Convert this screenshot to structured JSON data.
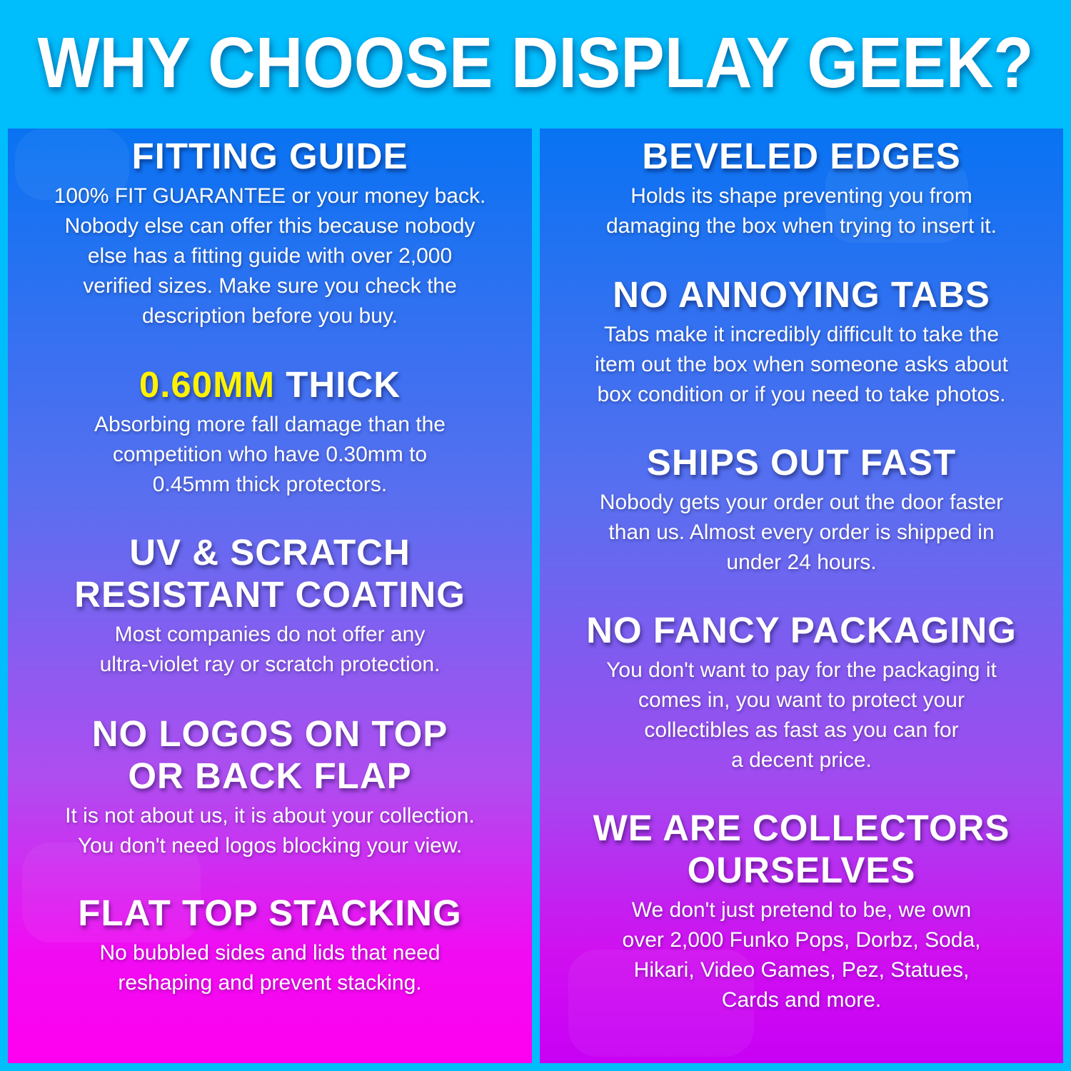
{
  "title": "WHY CHOOSE DISPLAY GEEK?",
  "colors": {
    "background": "#00bdfc",
    "highlight": "#fff200",
    "panel_top": "#0873f2",
    "panel_bottom": "#ff00f0"
  },
  "left": [
    {
      "heading": [
        "FITTING GUIDE"
      ],
      "body": [
        "100% FIT GUARANTEE or your money back.",
        "Nobody else can offer this because nobody",
        "else has a fitting guide with over 2,000",
        "verified sizes. Make sure you check the",
        "description before you buy."
      ]
    },
    {
      "heading_highlight": "0.60MM",
      "heading": [
        "THICK"
      ],
      "body": [
        "Absorbing more fall damage than the",
        "competition who have 0.30mm to",
        "0.45mm thick protectors."
      ]
    },
    {
      "heading": [
        "UV & SCRATCH",
        "RESISTANT COATING"
      ],
      "body": [
        "Most companies do not offer any",
        "ultra-violet ray or scratch protection."
      ]
    },
    {
      "heading": [
        "NO LOGOS ON TOP",
        "OR BACK FLAP"
      ],
      "body": [
        "It is not about us, it is about your collection.",
        "You don't need logos blocking your view."
      ]
    },
    {
      "heading": [
        "FLAT TOP STACKING"
      ],
      "body": [
        "No bubbled sides and lids that need",
        "reshaping and prevent stacking."
      ]
    }
  ],
  "right": [
    {
      "heading": [
        "BEVELED EDGES"
      ],
      "body": [
        "Holds its shape preventing you from",
        "damaging the box when trying to insert it."
      ]
    },
    {
      "heading": [
        "NO ANNOYING TABS"
      ],
      "body": [
        "Tabs make it incredibly difficult to take the",
        "item out the box when someone asks about",
        "box condition or if you need to take photos."
      ]
    },
    {
      "heading": [
        "SHIPS OUT FAST"
      ],
      "body": [
        "Nobody gets your order out the door faster",
        "than us. Almost every order is shipped in",
        "under 24 hours."
      ]
    },
    {
      "heading": [
        "NO FANCY PACKAGING"
      ],
      "body": [
        "You don't want to pay for the packaging it",
        "comes in, you want to protect your",
        "collectibles as fast as you can for",
        "a decent price."
      ]
    },
    {
      "heading": [
        "WE ARE COLLECTORS",
        "OURSELVES"
      ],
      "body": [
        "We don't just pretend to be, we own",
        "over 2,000 Funko Pops, Dorbz, Soda,",
        "Hikari, Video Games, Pez, Statues,",
        "Cards and more."
      ]
    }
  ]
}
